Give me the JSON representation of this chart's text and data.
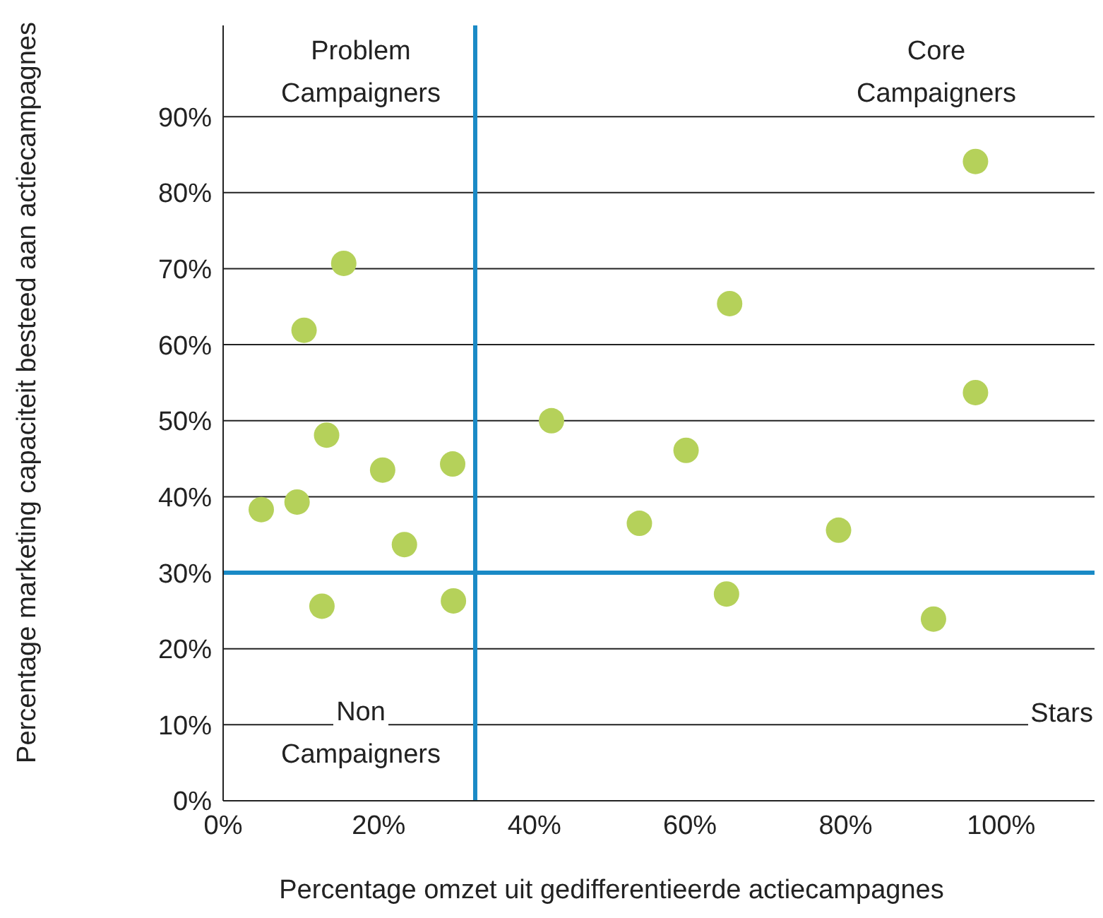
{
  "chart_data": {
    "type": "scatter",
    "xlabel": "Percentage omzet uit gedifferentieerde actiecampagnes",
    "ylabel": "Percentage marketing capaciteit besteed aan actiecampagnes",
    "x": [
      4.9,
      9.5,
      10.4,
      15.5,
      13.3,
      12.7,
      20.5,
      23.3,
      29.5,
      29.6,
      42.2,
      53.5,
      59.5,
      65.1,
      64.7,
      79.1,
      91.3,
      96.7,
      96.7
    ],
    "values": [
      38.3,
      39.3,
      61.9,
      70.7,
      48.1,
      25.6,
      43.5,
      33.7,
      44.3,
      26.3,
      50,
      36.5,
      46.1,
      65.4,
      27.2,
      35.6,
      23.9,
      53.7,
      84.1
    ],
    "color": "#b5d15a",
    "marker": "circle",
    "grid": "y",
    "xlim": [
      0,
      112
    ],
    "ylim": [
      0,
      102
    ],
    "xticks": [
      {
        "value": 0,
        "label": "0%"
      },
      {
        "value": 20,
        "label": "20%"
      },
      {
        "value": 40,
        "label": "40%"
      },
      {
        "value": 60,
        "label": "60%"
      },
      {
        "value": 80,
        "label": "80%"
      },
      {
        "value": 100,
        "label": "100%"
      }
    ],
    "yticks": [
      {
        "value": 0,
        "label": "0%"
      },
      {
        "value": 10,
        "label": "10%"
      },
      {
        "value": 20,
        "label": "20%"
      },
      {
        "value": 30,
        "label": "30%"
      },
      {
        "value": 40,
        "label": "40%"
      },
      {
        "value": 50,
        "label": "50%"
      },
      {
        "value": 60,
        "label": "60%"
      },
      {
        "value": 70,
        "label": "70%"
      },
      {
        "value": 80,
        "label": "80%"
      },
      {
        "value": 90,
        "label": "90%"
      }
    ],
    "ref_lines": [
      {
        "axis": "x",
        "value": 32.4,
        "color": "#1a8ac6"
      },
      {
        "axis": "y",
        "value": 30,
        "color": "#1a8ac6"
      }
    ],
    "annotations": [
      "Problem\nCampaigners",
      "Core\nCampaigners",
      "Non\nCampaigners",
      "Stars"
    ]
  }
}
